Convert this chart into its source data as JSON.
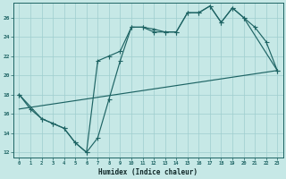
{
  "xlabel": "Humidex (Indice chaleur)",
  "xlim": [
    -0.5,
    23.5
  ],
  "ylim": [
    11.5,
    27.5
  ],
  "xticks": [
    0,
    1,
    2,
    3,
    4,
    5,
    6,
    7,
    8,
    9,
    10,
    11,
    12,
    13,
    14,
    15,
    16,
    17,
    18,
    19,
    20,
    21,
    22,
    23
  ],
  "yticks": [
    12,
    14,
    16,
    18,
    20,
    22,
    24,
    26
  ],
  "bg_color": "#c6e8e6",
  "grid_color": "#9ecece",
  "line_color": "#1e6464",
  "line1_x": [
    0,
    1,
    2,
    3,
    4,
    5,
    6,
    7,
    8,
    9,
    10,
    11,
    12,
    13,
    14,
    15,
    16,
    17,
    18,
    19,
    20,
    21,
    22,
    23
  ],
  "line1_y": [
    18.0,
    16.5,
    15.5,
    15.0,
    14.5,
    13.0,
    12.0,
    13.5,
    17.5,
    21.5,
    25.0,
    25.0,
    24.8,
    24.5,
    24.5,
    26.5,
    26.5,
    27.2,
    25.5,
    27.0,
    26.0,
    25.0,
    23.5,
    20.5
  ],
  "line2_x": [
    0,
    2,
    3,
    4,
    5,
    6,
    7,
    8,
    9,
    10,
    11,
    12,
    13,
    14,
    15,
    16,
    17,
    18,
    19,
    20,
    23
  ],
  "line2_y": [
    18.0,
    15.5,
    15.0,
    14.5,
    13.0,
    12.0,
    21.5,
    22.0,
    22.5,
    25.0,
    25.0,
    24.5,
    24.5,
    24.5,
    26.5,
    26.5,
    27.2,
    25.5,
    27.0,
    26.0,
    20.5
  ],
  "line3_x": [
    0,
    23
  ],
  "line3_y": [
    16.5,
    20.5
  ]
}
